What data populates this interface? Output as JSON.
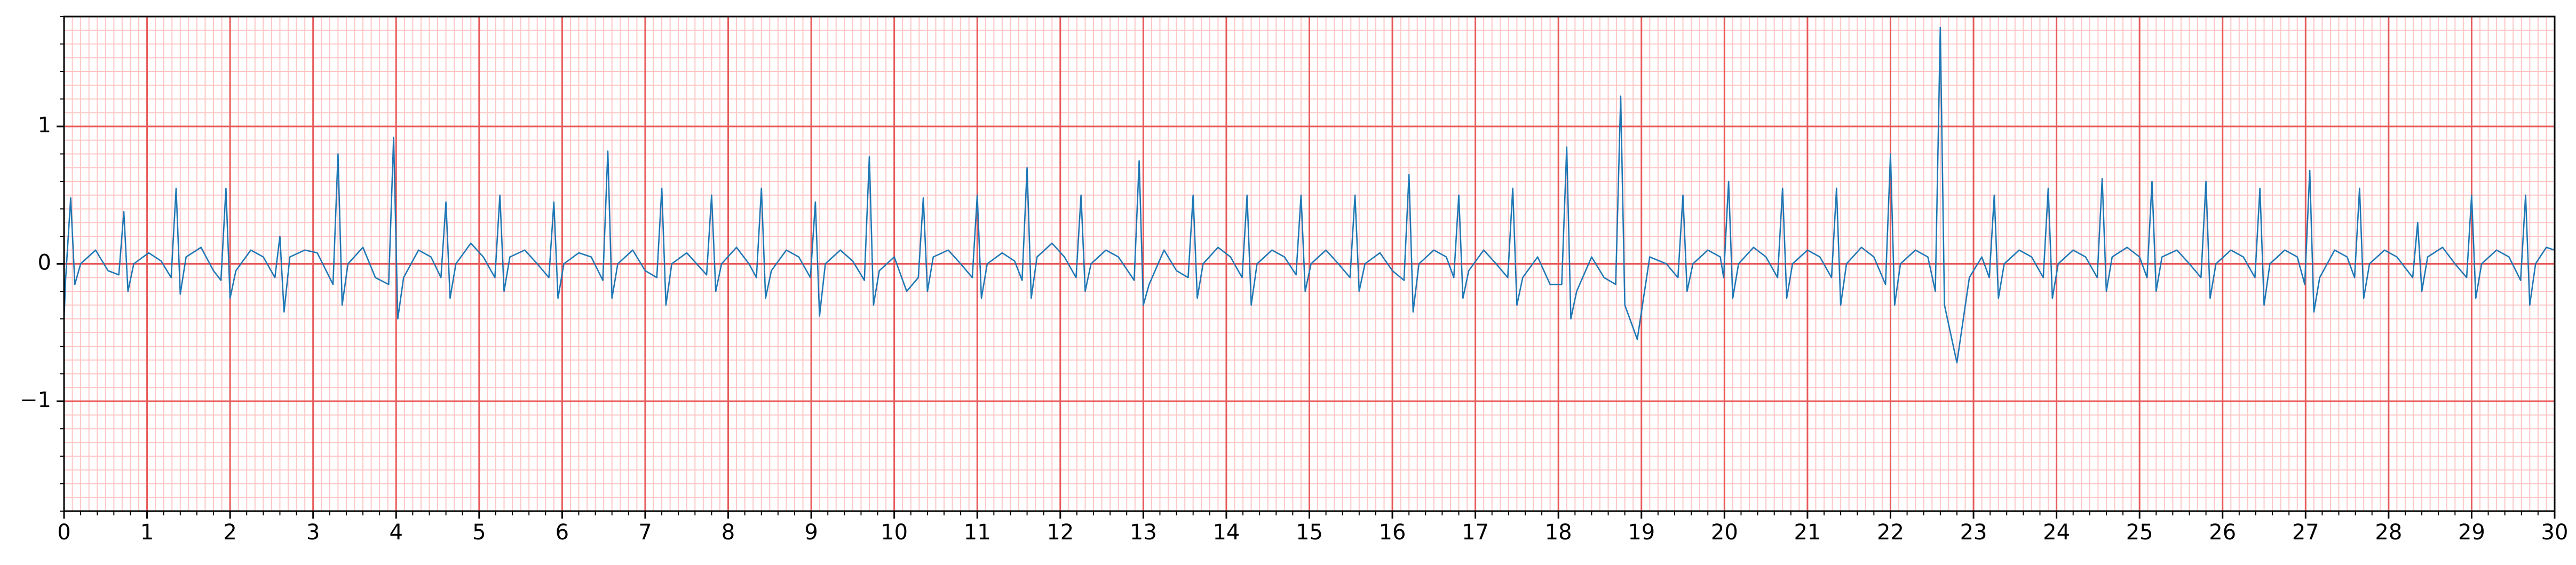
{
  "chart_data": {
    "type": "line",
    "xlim": [
      0,
      30
    ],
    "ylim": [
      -1.8,
      1.8
    ],
    "xticks": [
      0,
      1,
      2,
      3,
      4,
      5,
      6,
      7,
      8,
      9,
      10,
      11,
      12,
      13,
      14,
      15,
      16,
      17,
      18,
      19,
      20,
      21,
      22,
      23,
      24,
      25,
      26,
      27,
      28,
      29,
      30
    ],
    "yticks": [
      {
        "value": -1,
        "label": "−1"
      },
      0,
      1
    ],
    "grid": true,
    "grid_color": "#e85a5a",
    "minor_grid_color": "#ffc6c6",
    "series": [
      {
        "color": "#1f77b4",
        "x": [
          0,
          0.02,
          0.08,
          0.13,
          0.2,
          0.38,
          0.53,
          0.66,
          0.72,
          0.77,
          0.84,
          1.02,
          1.17,
          1.29,
          1.35,
          1.4,
          1.47,
          1.65,
          1.8,
          1.89,
          1.95,
          2.0,
          2.07,
          2.25,
          2.4,
          2.54,
          2.6,
          2.65,
          2.72,
          2.9,
          3.05,
          3.24,
          3.3,
          3.35,
          3.42,
          3.6,
          3.75,
          3.91,
          3.97,
          4.02,
          4.09,
          4.27,
          4.42,
          4.54,
          4.6,
          4.65,
          4.72,
          4.9,
          5.05,
          5.19,
          5.25,
          5.3,
          5.37,
          5.55,
          5.7,
          5.84,
          5.9,
          5.95,
          6.02,
          6.2,
          6.35,
          6.49,
          6.55,
          6.6,
          6.67,
          6.85,
          7.0,
          7.14,
          7.2,
          7.25,
          7.32,
          7.5,
          7.65,
          7.74,
          7.8,
          7.85,
          7.92,
          8.1,
          8.25,
          8.34,
          8.4,
          8.45,
          8.52,
          8.7,
          8.85,
          8.99,
          9.05,
          9.1,
          9.17,
          9.35,
          9.5,
          9.64,
          9.7,
          9.75,
          9.82,
          10.0,
          10.15,
          10.29,
          10.35,
          10.4,
          10.47,
          10.65,
          10.8,
          10.94,
          11.0,
          11.05,
          11.12,
          11.3,
          11.45,
          11.54,
          11.6,
          11.65,
          11.72,
          11.9,
          12.05,
          12.19,
          12.25,
          12.3,
          12.37,
          12.55,
          12.7,
          12.89,
          12.95,
          13.0,
          13.07,
          13.25,
          13.4,
          13.54,
          13.6,
          13.65,
          13.72,
          13.9,
          14.05,
          14.19,
          14.25,
          14.3,
          14.37,
          14.55,
          14.7,
          14.84,
          14.9,
          14.95,
          15.02,
          15.2,
          15.35,
          15.49,
          15.55,
          15.6,
          15.67,
          15.85,
          16.0,
          16.14,
          16.2,
          16.25,
          16.32,
          16.5,
          16.65,
          16.74,
          16.8,
          16.85,
          16.92,
          17.1,
          17.25,
          17.39,
          17.45,
          17.5,
          17.57,
          17.75,
          17.9,
          18.04,
          18.1,
          18.15,
          18.22,
          18.4,
          18.55,
          18.69,
          18.75,
          18.8,
          18.95,
          19.1,
          19.3,
          19.44,
          19.5,
          19.55,
          19.62,
          19.8,
          19.95,
          19.99,
          20.05,
          20.1,
          20.17,
          20.35,
          20.5,
          20.64,
          20.7,
          20.75,
          20.82,
          21.0,
          21.15,
          21.29,
          21.35,
          21.4,
          21.47,
          21.65,
          21.8,
          21.94,
          22.0,
          22.05,
          22.12,
          22.3,
          22.45,
          22.54,
          22.6,
          22.65,
          22.8,
          22.95,
          23.1,
          23.19,
          23.25,
          23.3,
          23.37,
          23.55,
          23.7,
          23.84,
          23.9,
          23.95,
          24.02,
          24.2,
          24.35,
          24.49,
          24.55,
          24.6,
          24.67,
          24.85,
          25.0,
          25.09,
          25.15,
          25.2,
          25.27,
          25.45,
          25.6,
          25.74,
          25.8,
          25.85,
          25.92,
          26.1,
          26.25,
          26.39,
          26.45,
          26.5,
          26.57,
          26.75,
          26.9,
          26.99,
          27.05,
          27.1,
          27.17,
          27.35,
          27.5,
          27.59,
          27.65,
          27.7,
          27.77,
          27.95,
          28.1,
          28.29,
          28.35,
          28.4,
          28.47,
          28.65,
          28.8,
          28.94,
          29.0,
          29.05,
          29.12,
          29.3,
          29.45,
          29.59,
          29.65,
          29.7,
          29.77,
          29.9,
          30.0
        ],
        "values": [
          -0.4,
          -0.1,
          0.48,
          -0.15,
          0.0,
          0.1,
          -0.05,
          -0.08,
          0.38,
          -0.2,
          0.0,
          0.08,
          0.02,
          -0.1,
          0.55,
          -0.22,
          0.05,
          0.12,
          -0.05,
          -0.12,
          0.55,
          -0.25,
          -0.05,
          0.1,
          0.05,
          -0.1,
          0.2,
          -0.35,
          0.05,
          0.1,
          0.08,
          -0.15,
          0.8,
          -0.3,
          0.0,
          0.12,
          -0.1,
          -0.15,
          0.92,
          -0.4,
          -0.1,
          0.1,
          0.05,
          -0.1,
          0.45,
          -0.25,
          0.0,
          0.15,
          0.05,
          -0.1,
          0.5,
          -0.2,
          0.05,
          0.1,
          0.0,
          -0.1,
          0.45,
          -0.25,
          0.0,
          0.08,
          0.05,
          -0.12,
          0.82,
          -0.25,
          0.0,
          0.1,
          -0.05,
          -0.1,
          0.55,
          -0.3,
          0.0,
          0.08,
          -0.02,
          -0.08,
          0.5,
          -0.2,
          0.0,
          0.12,
          0.0,
          -0.1,
          0.55,
          -0.25,
          -0.05,
          0.1,
          0.05,
          -0.1,
          0.45,
          -0.38,
          0.0,
          0.1,
          0.02,
          -0.12,
          0.78,
          -0.3,
          -0.05,
          0.05,
          -0.2,
          -0.1,
          0.48,
          -0.2,
          0.05,
          0.1,
          0.0,
          -0.1,
          0.5,
          -0.25,
          0.0,
          0.08,
          0.02,
          -0.12,
          0.7,
          -0.25,
          0.05,
          0.15,
          0.05,
          -0.1,
          0.5,
          -0.2,
          0.0,
          0.1,
          0.05,
          -0.12,
          0.75,
          -0.3,
          -0.15,
          0.1,
          -0.05,
          -0.1,
          0.5,
          -0.25,
          0.0,
          0.12,
          0.05,
          -0.1,
          0.5,
          -0.3,
          0.0,
          0.1,
          0.05,
          -0.08,
          0.5,
          -0.2,
          0.0,
          0.1,
          0.0,
          -0.1,
          0.5,
          -0.2,
          0.0,
          0.08,
          -0.05,
          -0.12,
          0.65,
          -0.35,
          0.0,
          0.1,
          0.05,
          -0.1,
          0.5,
          -0.25,
          -0.05,
          0.1,
          0.0,
          -0.1,
          0.55,
          -0.3,
          -0.1,
          0.05,
          -0.15,
          -0.15,
          0.85,
          -0.4,
          -0.2,
          0.05,
          -0.1,
          -0.15,
          1.22,
          -0.3,
          -0.55,
          0.05,
          0.0,
          -0.1,
          0.5,
          -0.2,
          0.0,
          0.1,
          0.05,
          -0.1,
          0.6,
          -0.25,
          0.0,
          0.12,
          0.05,
          -0.1,
          0.55,
          -0.25,
          0.0,
          0.1,
          0.05,
          -0.1,
          0.55,
          -0.3,
          0.0,
          0.12,
          0.05,
          -0.15,
          0.8,
          -0.3,
          0.0,
          0.1,
          0.05,
          -0.2,
          1.72,
          -0.3,
          -0.72,
          -0.1,
          0.05,
          -0.1,
          0.5,
          -0.25,
          0.0,
          0.1,
          0.05,
          -0.1,
          0.55,
          -0.25,
          0.0,
          0.1,
          0.05,
          -0.1,
          0.62,
          -0.2,
          0.05,
          0.12,
          0.05,
          -0.1,
          0.6,
          -0.2,
          0.05,
          0.1,
          0.0,
          -0.1,
          0.6,
          -0.25,
          0.0,
          0.1,
          0.05,
          -0.1,
          0.55,
          -0.3,
          0.0,
          0.1,
          0.05,
          -0.15,
          0.68,
          -0.35,
          -0.1,
          0.1,
          0.05,
          -0.1,
          0.55,
          -0.25,
          0.0,
          0.1,
          0.05,
          -0.1,
          0.3,
          -0.2,
          0.05,
          0.12,
          0.0,
          -0.1,
          0.5,
          -0.25,
          0.0,
          0.1,
          0.05,
          -0.12,
          0.5,
          -0.3,
          0.0,
          0.12,
          0.1
        ]
      }
    ]
  }
}
